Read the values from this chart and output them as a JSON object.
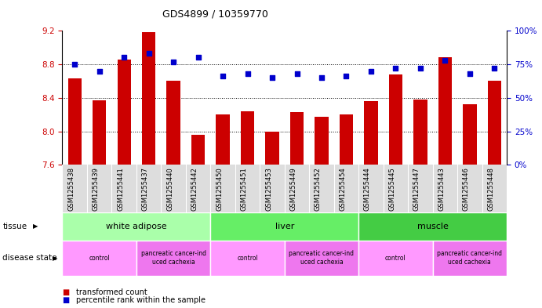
{
  "title": "GDS4899 / 10359770",
  "samples": [
    "GSM1255438",
    "GSM1255439",
    "GSM1255441",
    "GSM1255437",
    "GSM1255440",
    "GSM1255442",
    "GSM1255450",
    "GSM1255451",
    "GSM1255453",
    "GSM1255449",
    "GSM1255452",
    "GSM1255454",
    "GSM1255444",
    "GSM1255445",
    "GSM1255447",
    "GSM1255443",
    "GSM1255446",
    "GSM1255448"
  ],
  "transformed_count": [
    8.63,
    8.37,
    8.86,
    9.18,
    8.6,
    7.96,
    8.2,
    8.24,
    8.0,
    8.23,
    8.17,
    8.2,
    8.36,
    8.68,
    8.38,
    8.88,
    8.32,
    8.6
  ],
  "percentile_rank": [
    75,
    70,
    80,
    83,
    77,
    80,
    66,
    68,
    65,
    68,
    65,
    66,
    70,
    72,
    72,
    78,
    68,
    72
  ],
  "ylim_left": [
    7.6,
    9.2
  ],
  "ylim_right": [
    0,
    100
  ],
  "yticks_left": [
    7.6,
    8.0,
    8.4,
    8.8,
    9.2
  ],
  "yticks_right": [
    0,
    25,
    50,
    75,
    100
  ],
  "bar_color": "#CC0000",
  "dot_color": "#0000CC",
  "bar_bottom": 7.6,
  "tissue_groups": [
    {
      "label": "white adipose",
      "start": 0,
      "end": 6,
      "color": "#AAFFAA"
    },
    {
      "label": "liver",
      "start": 6,
      "end": 12,
      "color": "#66EE66"
    },
    {
      "label": "muscle",
      "start": 12,
      "end": 18,
      "color": "#44CC44"
    }
  ],
  "disease_groups": [
    {
      "label": "control",
      "start": 0,
      "end": 3,
      "color": "#FF99FF"
    },
    {
      "label": "pancreatic cancer-ind\nuced cachexia",
      "start": 3,
      "end": 6,
      "color": "#EE77EE"
    },
    {
      "label": "control",
      "start": 6,
      "end": 9,
      "color": "#FF99FF"
    },
    {
      "label": "pancreatic cancer-ind\nuced cachexia",
      "start": 9,
      "end": 12,
      "color": "#EE77EE"
    },
    {
      "label": "control",
      "start": 12,
      "end": 15,
      "color": "#FF99FF"
    },
    {
      "label": "pancreatic cancer-ind\nuced cachexia",
      "start": 15,
      "end": 18,
      "color": "#EE77EE"
    }
  ],
  "legend_items": [
    {
      "label": "transformed count",
      "color": "#CC0000"
    },
    {
      "label": "percentile rank within the sample",
      "color": "#0000CC"
    }
  ],
  "background_color": "#ffffff",
  "tick_color_left": "#CC0000",
  "tick_color_right": "#0000CC",
  "xtick_bg_color": "#DDDDDD",
  "grid_yticks": [
    8.0,
    8.4,
    8.8
  ]
}
